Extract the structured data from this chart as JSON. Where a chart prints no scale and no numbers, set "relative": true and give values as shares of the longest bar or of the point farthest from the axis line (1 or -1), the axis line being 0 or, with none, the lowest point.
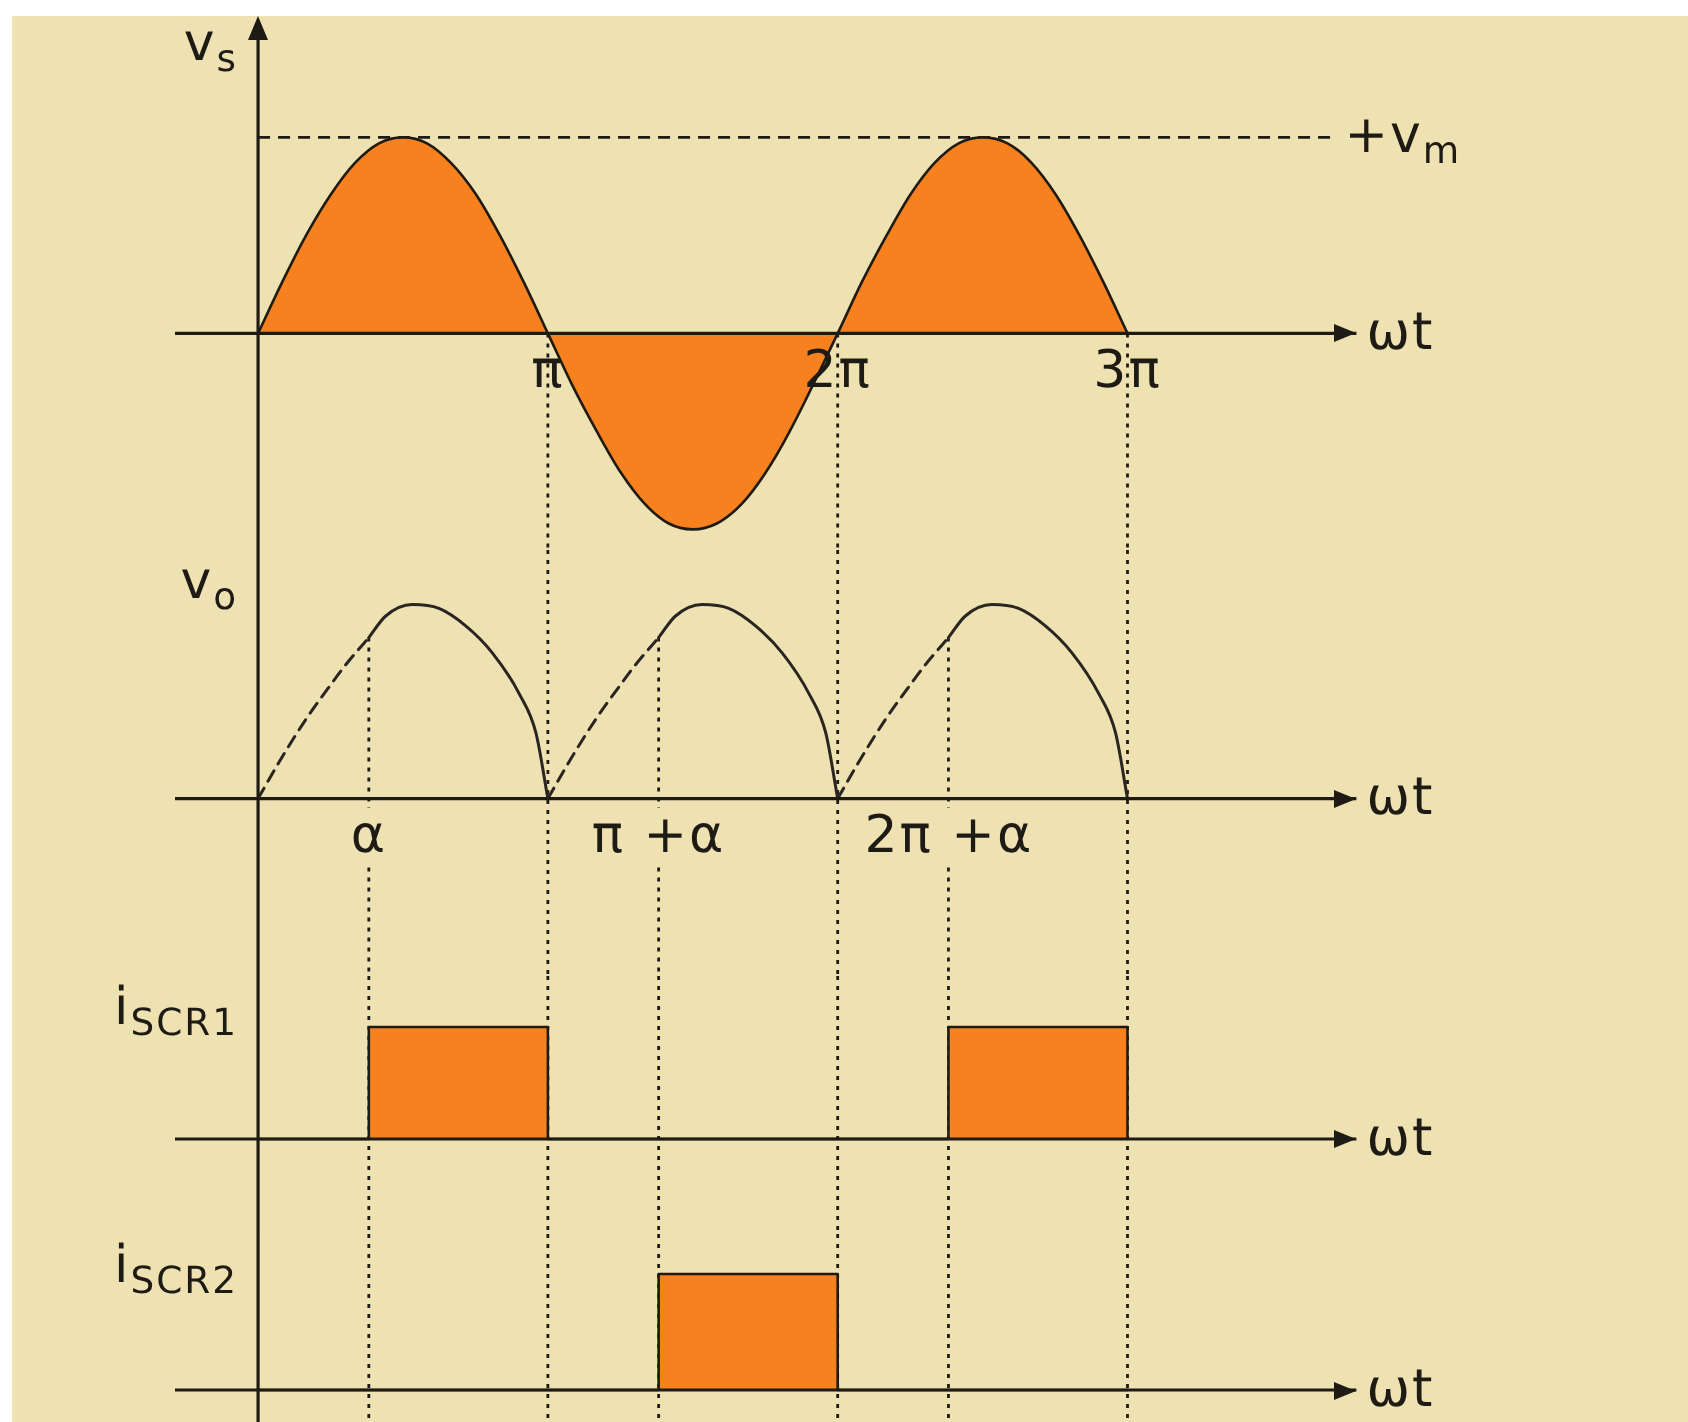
{
  "chart_data": [
    {
      "type": "area",
      "ylabel": "v$_{s}$",
      "xlabel": "ωt",
      "relative": true,
      "xlim": [
        -0.9,
        11.9
      ],
      "xticks": [
        {
          "value": 3.14,
          "label": "π"
        },
        {
          "value": 6.28,
          "label": "2π"
        },
        {
          "value": 9.42,
          "label": "3π"
        }
      ],
      "marker": "none",
      "color": "#f7801f",
      "x": [
        0,
        0.26,
        0.52,
        0.79,
        1.05,
        1.31,
        1.57,
        1.83,
        2.09,
        2.36,
        2.62,
        2.88,
        3.14,
        3.4,
        3.67,
        3.93,
        4.19,
        4.45,
        4.71,
        4.97,
        5.24,
        5.5,
        5.76,
        6.28,
        6.54,
        6.81,
        7.07,
        7.33,
        7.59,
        7.85,
        8.12,
        8.38,
        8.64,
        8.9,
        9.16,
        9.42
      ],
      "values": [
        0,
        0.26,
        0.5,
        0.71,
        0.87,
        0.97,
        1,
        0.97,
        0.87,
        0.71,
        0.5,
        0.26,
        0,
        -0.26,
        -0.5,
        -0.71,
        -0.87,
        -0.97,
        -1,
        -0.97,
        -0.87,
        -0.71,
        -0.5,
        0,
        0.26,
        0.5,
        0.71,
        0.87,
        0.97,
        1,
        0.97,
        0.87,
        0.71,
        0.5,
        0.26,
        0
      ],
      "ref_lines": [
        {
          "axis": "y",
          "value": 1,
          "label": "+v$_{m}$",
          "line_style": "dashed"
        },
        {
          "axis": "x",
          "value": 3.14,
          "line_style": "dotted"
        },
        {
          "axis": "x",
          "value": 6.28,
          "line_style": "dotted"
        },
        {
          "axis": "x",
          "value": 9.42,
          "line_style": "dotted"
        }
      ]
    },
    {
      "type": "line",
      "ylabel": "v$_{o}$",
      "xlabel": "ωt",
      "relative": true,
      "xlim": [
        -0.9,
        11.9
      ],
      "tick_labels": false,
      "marker": "none",
      "line_style": "solid",
      "series": [
        {
          "color": "#2a2520",
          "line_style": "dashed",
          "x": [
            0,
            0.23,
            0.52,
            0.73,
            0.95,
            1.2
          ],
          "values": [
            0,
            0.19,
            0.41,
            0.55,
            0.69,
            0.83
          ]
        },
        {
          "color": "#2a2520",
          "x": [
            1.2,
            1.38,
            1.67,
            1.96,
            2.25,
            2.54,
            2.83,
            3.01,
            3.14
          ],
          "values": [
            0.83,
            0.94,
            1,
            0.98,
            0.89,
            0.75,
            0.54,
            0.34,
            0
          ]
        },
        {
          "color": "#2a2520",
          "line_style": "dashed",
          "x": [
            3.14,
            3.37,
            3.66,
            3.87,
            4.09,
            4.34
          ],
          "values": [
            0,
            0.19,
            0.41,
            0.55,
            0.69,
            0.83
          ]
        },
        {
          "color": "#2a2520",
          "x": [
            4.34,
            4.52,
            4.81,
            5.1,
            5.39,
            5.68,
            5.97,
            6.15,
            6.28
          ],
          "values": [
            0.83,
            0.94,
            1,
            0.98,
            0.89,
            0.75,
            0.54,
            0.34,
            0
          ]
        },
        {
          "color": "#2a2520",
          "line_style": "dashed",
          "x": [
            6.28,
            6.51,
            6.8,
            7.01,
            7.23,
            7.48
          ],
          "values": [
            0,
            0.19,
            0.41,
            0.55,
            0.69,
            0.83
          ]
        },
        {
          "color": "#2a2520",
          "x": [
            7.48,
            7.66,
            7.95,
            8.24,
            8.53,
            8.82,
            9.11,
            9.29,
            9.42
          ],
          "values": [
            0.83,
            0.94,
            1,
            0.98,
            0.89,
            0.75,
            0.54,
            0.34,
            0
          ]
        }
      ],
      "ref_lines": [
        {
          "axis": "x",
          "value": 1.2,
          "label": "α",
          "line_style": "dotted"
        },
        {
          "axis": "x",
          "value": 3.14,
          "line_style": "dotted"
        },
        {
          "axis": "x",
          "value": 4.34,
          "label": "π +α",
          "line_style": "dotted"
        },
        {
          "axis": "x",
          "value": 6.28,
          "line_style": "dotted"
        },
        {
          "axis": "x",
          "value": 7.48,
          "label": "2π +α",
          "line_style": "dotted"
        },
        {
          "axis": "x",
          "value": 9.42,
          "line_style": "dotted"
        }
      ]
    },
    {
      "type": "area",
      "ylabel": "i$_{SCR1}$",
      "xlabel": "ωt",
      "relative": true,
      "xlim": [
        -0.9,
        11.9
      ],
      "tick_labels": false,
      "marker": "none",
      "color": "#f7801f",
      "x": [
        0,
        1.2,
        1.2,
        3.14,
        3.14,
        7.48,
        7.48,
        9.42,
        9.42
      ],
      "values": [
        0,
        0,
        1,
        1,
        0,
        0,
        1,
        1,
        0
      ],
      "ref_lines": [
        {
          "axis": "x",
          "value": 1.2,
          "line_style": "dotted"
        },
        {
          "axis": "x",
          "value": 3.14,
          "line_style": "dotted"
        },
        {
          "axis": "x",
          "value": 4.34,
          "line_style": "dotted"
        },
        {
          "axis": "x",
          "value": 6.28,
          "line_style": "dotted"
        },
        {
          "axis": "x",
          "value": 7.48,
          "line_style": "dotted"
        },
        {
          "axis": "x",
          "value": 9.42,
          "line_style": "dotted"
        }
      ]
    },
    {
      "type": "area",
      "ylabel": "i$_{SCR2}$",
      "xlabel": "ωt",
      "relative": true,
      "xlim": [
        -0.9,
        11.9
      ],
      "tick_labels": false,
      "marker": "none",
      "color": "#f7801f",
      "x": [
        0,
        4.34,
        4.34,
        6.28,
        6.28,
        9.42
      ],
      "values": [
        0,
        0,
        1,
        1,
        0,
        0
      ],
      "ref_lines": [
        {
          "axis": "x",
          "value": 1.2,
          "line_style": "dotted"
        },
        {
          "axis": "x",
          "value": 3.14,
          "line_style": "dotted"
        },
        {
          "axis": "x",
          "value": 4.34,
          "line_style": "dotted"
        },
        {
          "axis": "x",
          "value": 6.28,
          "line_style": "dotted"
        },
        {
          "axis": "x",
          "value": 7.48,
          "line_style": "dotted"
        },
        {
          "axis": "x",
          "value": 9.42,
          "line_style": "dotted"
        }
      ]
    }
  ]
}
